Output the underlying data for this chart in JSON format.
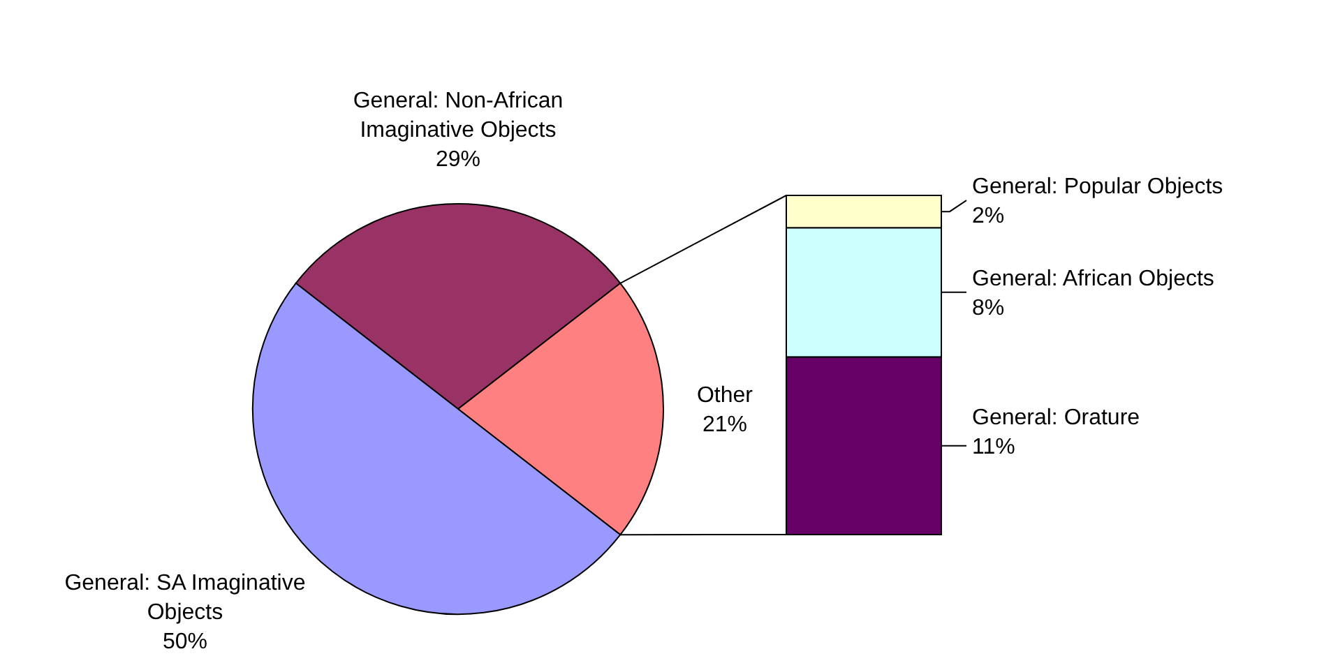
{
  "chart_data": [
    {
      "type": "pie",
      "categories": [
        "General: Non-African Imaginative Objects",
        "Other",
        "General: SA Imaginative Objects"
      ],
      "values": [
        29,
        21,
        50
      ],
      "value_labels": [
        "29%",
        "21%",
        "50%"
      ],
      "colors": [
        "#993366",
        "#ff8080",
        "#9999ff"
      ]
    },
    {
      "type": "bar",
      "stacked": true,
      "categories": [
        null
      ],
      "legend": "right",
      "series": [
        {
          "name": "General: Orature",
          "color": "#660066",
          "values": [
            11
          ],
          "value_labels": [
            "11%"
          ]
        },
        {
          "name": "General: African Objects",
          "color": "#ccffff",
          "values": [
            8
          ],
          "value_labels": [
            "8%"
          ]
        },
        {
          "name": "General: Popular Objects",
          "color": "#ffffcc",
          "values": [
            2
          ],
          "value_labels": [
            "2%"
          ]
        }
      ]
    }
  ]
}
